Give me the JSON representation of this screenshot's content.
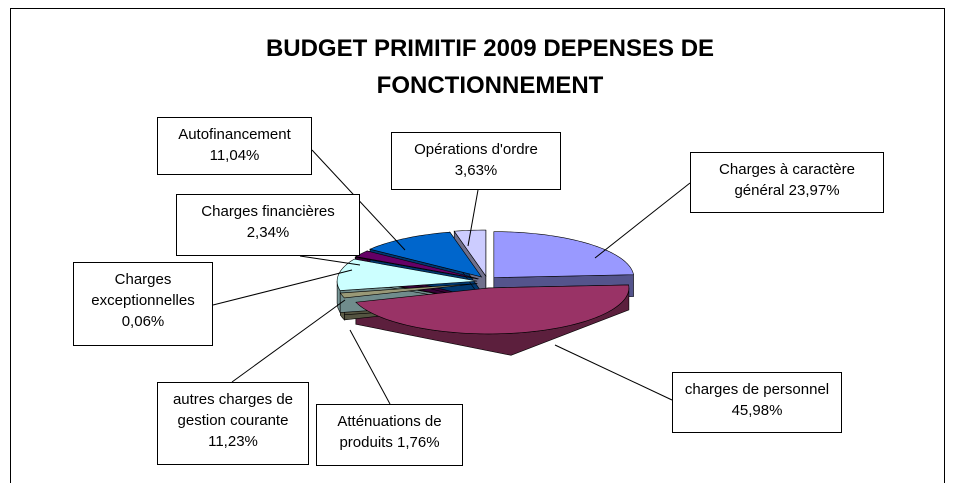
{
  "chart_data": {
    "type": "pie3d",
    "title": "BUDGET PRIMITIF 2009  DEPENSES DE FONCTIONNEMENT",
    "categories": [
      "Charges à caractère général",
      "charges de personnel",
      "Atténuations de produits",
      "autres charges de gestion courante",
      "Charges exceptionnelles",
      "Charges financières",
      "Autofinancement",
      "Opérations d'ordre"
    ],
    "values": [
      23.97,
      45.98,
      1.76,
      11.23,
      0.06,
      2.34,
      11.04,
      3.63
    ],
    "value_labels": [
      "23,97%",
      "45,98%",
      "1,76%",
      "11,23%",
      "0,06%",
      "2,34%",
      "11,04%",
      "3,63%"
    ],
    "colors": [
      "#9999ff",
      "#993366",
      "#999977",
      "#ccffff",
      "#ff8080",
      "#660066",
      "#0066cc",
      "#ccccff"
    ]
  }
}
